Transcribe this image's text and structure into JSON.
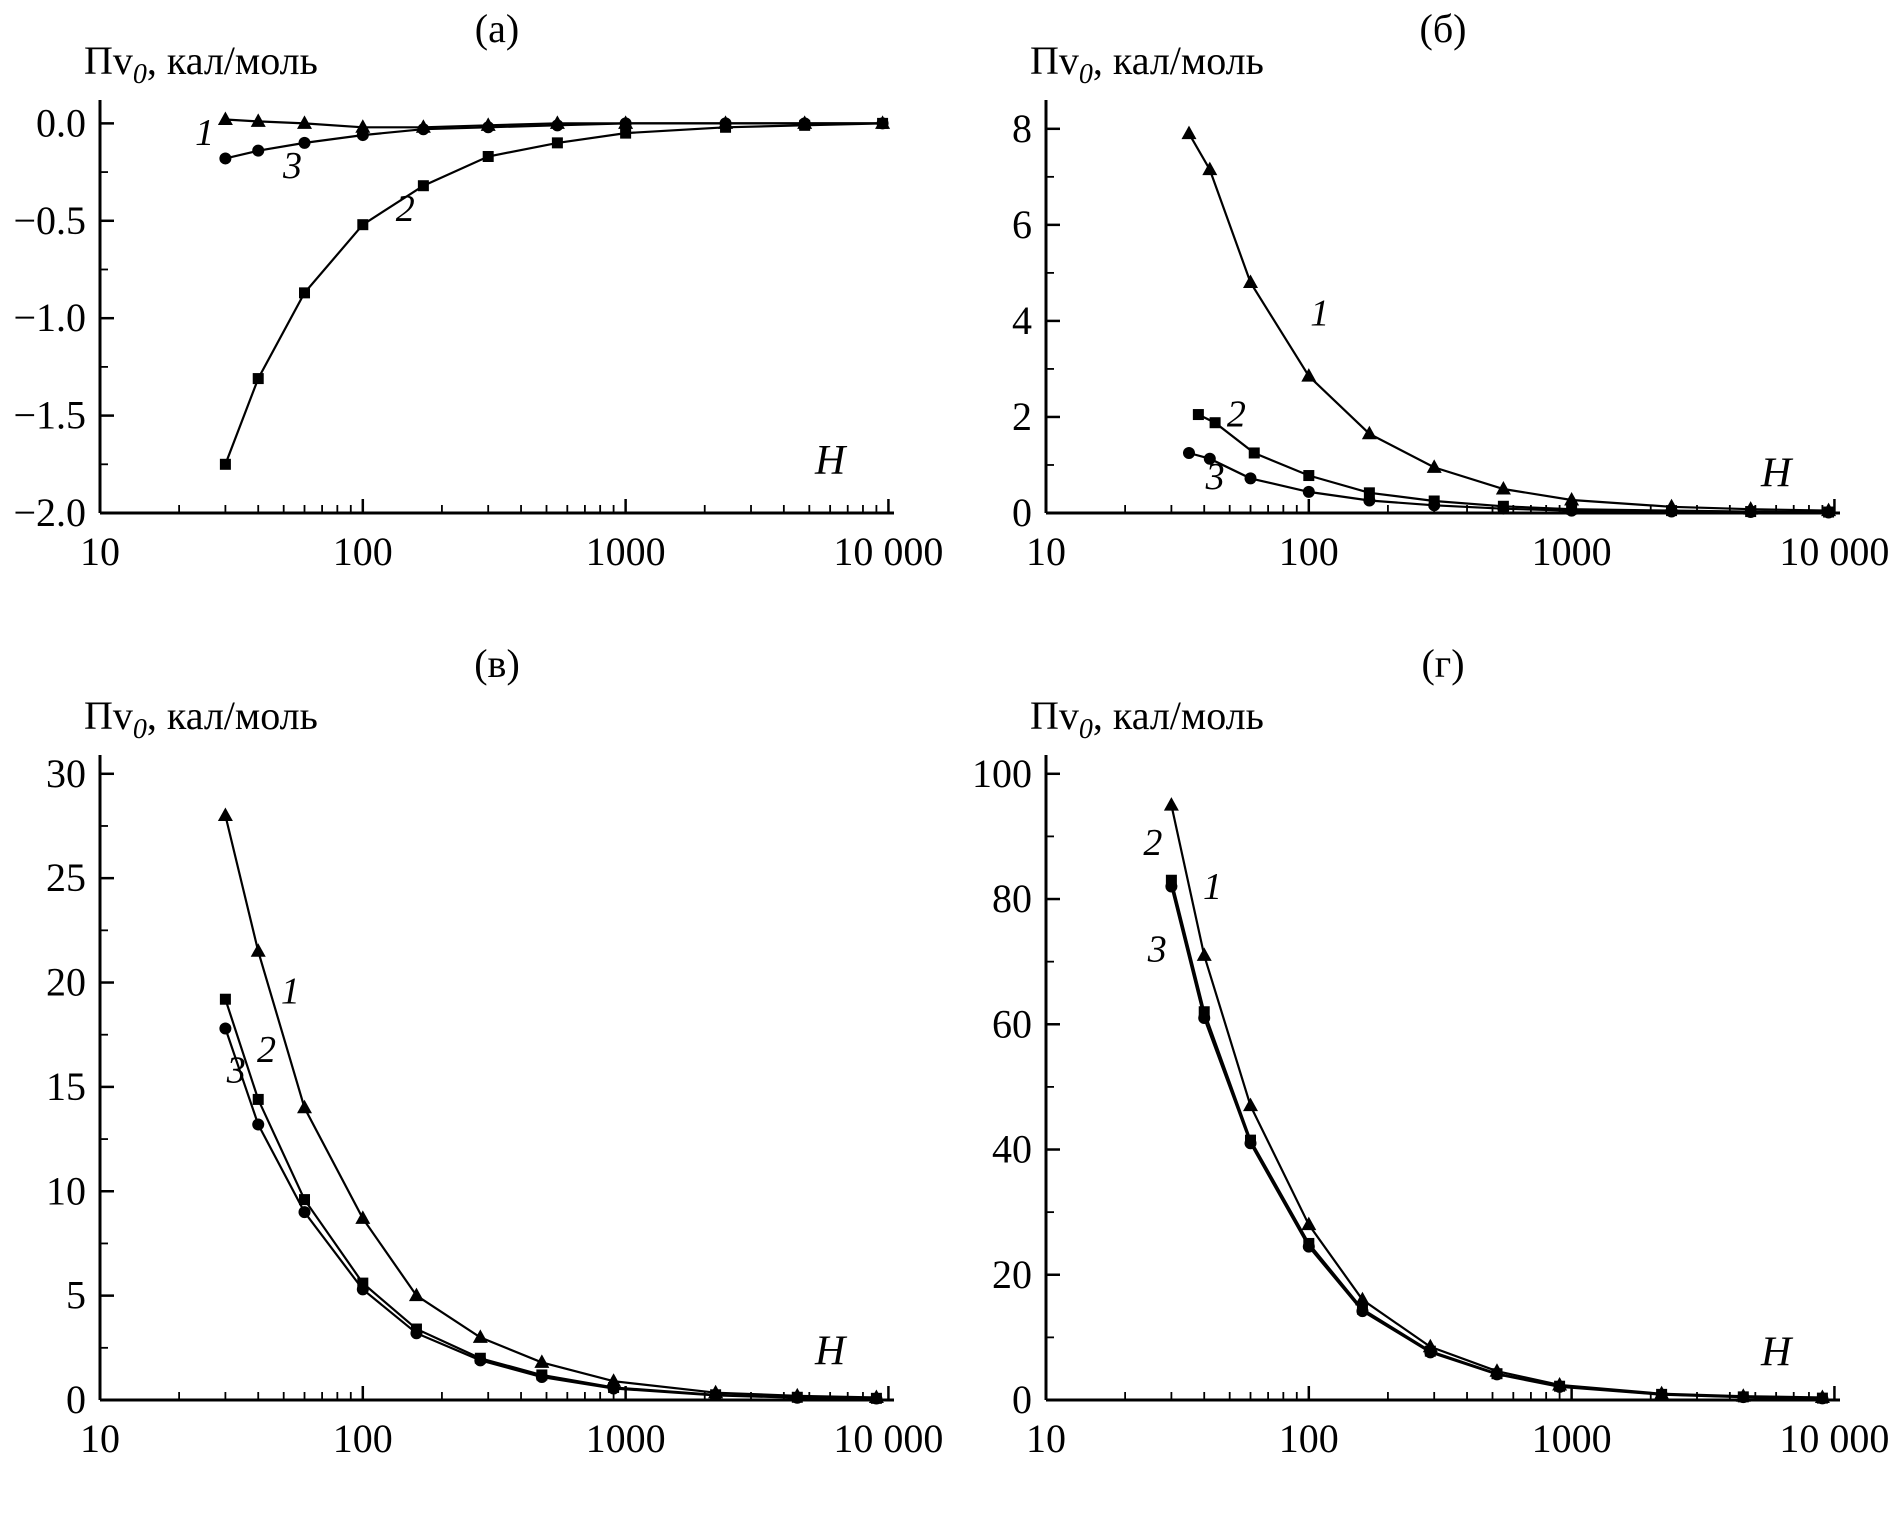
{
  "figure": {
    "background": "#ffffff",
    "ink_color": "#000000"
  },
  "chart_data": [
    {
      "type": "line",
      "panel_label": "(а)",
      "axis_title": {
        "main": "Пv",
        "sub": "0",
        "rest": ", кал/моль"
      },
      "x_axis_label": "H",
      "x_scale": "log",
      "xlim": [
        10,
        10500
      ],
      "x_major_ticks": [
        10,
        100,
        1000,
        10000
      ],
      "x_tick_labels": [
        "10",
        "100",
        "1000",
        "10 000"
      ],
      "ylim": [
        -2.0,
        0.12
      ],
      "y_major_ticks": [
        0,
        -0.5,
        -1.0,
        -1.5,
        -2.0
      ],
      "y_tick_labels": [
        "0.0",
        "−0.5",
        "−1.0",
        "−1.5",
        "−2.0"
      ],
      "y_minor_step": 0.25,
      "grid": false,
      "legend": "none",
      "series": [
        {
          "name": "1",
          "marker": "triangle",
          "x": [
            30,
            40,
            60,
            100,
            170,
            300,
            550,
            1000,
            2400,
            4800,
            9500
          ],
          "y": [
            0.02,
            0.01,
            0.0,
            -0.02,
            -0.02,
            -0.01,
            0.0,
            0.0,
            0.0,
            0.0,
            0.0
          ]
        },
        {
          "name": "2",
          "marker": "square",
          "x": [
            30,
            40,
            60,
            100,
            170,
            300,
            550,
            1000,
            2400,
            4800,
            9500
          ],
          "y": [
            -1.75,
            -1.31,
            -0.87,
            -0.52,
            -0.32,
            -0.17,
            -0.1,
            -0.05,
            -0.02,
            -0.01,
            0.0
          ]
        },
        {
          "name": "3",
          "marker": "circle",
          "x": [
            30,
            40,
            60,
            100,
            170,
            300,
            550,
            1000,
            2400,
            4800,
            9500
          ],
          "y": [
            -0.18,
            -0.14,
            -0.1,
            -0.06,
            -0.03,
            -0.02,
            -0.01,
            0.0,
            0.0,
            0.0,
            0.0
          ]
        }
      ],
      "annotations": [
        {
          "text": "1",
          "x": 25,
          "y": -0.11
        },
        {
          "text": "3",
          "x": 54,
          "y": -0.28
        },
        {
          "text": "2",
          "x": 145,
          "y": -0.5
        }
      ],
      "x_axis_label_pos": {
        "x": 6000,
        "y": -1.8
      }
    },
    {
      "type": "line",
      "panel_label": "(б)",
      "axis_title": {
        "main": "Пv",
        "sub": "0",
        "rest": ", кал/моль"
      },
      "x_axis_label": "H",
      "x_scale": "log",
      "xlim": [
        10,
        10500
      ],
      "x_major_ticks": [
        10,
        100,
        1000,
        10000
      ],
      "x_tick_labels": [
        "10",
        "100",
        "1000",
        "10 000"
      ],
      "ylim": [
        0,
        8.6
      ],
      "y_major_ticks": [
        0,
        2,
        4,
        6,
        8
      ],
      "y_tick_labels": [
        "0",
        "2",
        "4",
        "6",
        "8"
      ],
      "y_minor_step": 1,
      "grid": false,
      "legend": "none",
      "series": [
        {
          "name": "1",
          "marker": "triangle",
          "x": [
            35,
            42,
            60,
            100,
            170,
            300,
            550,
            1000,
            2400,
            4800,
            9500
          ],
          "y": [
            7.9,
            7.15,
            4.8,
            2.85,
            1.65,
            0.95,
            0.5,
            0.27,
            0.13,
            0.08,
            0.05
          ]
        },
        {
          "name": "2",
          "marker": "square",
          "x": [
            38,
            44,
            62,
            100,
            170,
            300,
            550,
            1000,
            2400,
            4800,
            9500
          ],
          "y": [
            2.05,
            1.88,
            1.25,
            0.78,
            0.42,
            0.25,
            0.14,
            0.08,
            0.05,
            0.03,
            0.02
          ]
        },
        {
          "name": "3",
          "marker": "circle",
          "x": [
            35,
            42,
            60,
            100,
            170,
            300,
            550,
            1000,
            2400,
            4800,
            9500
          ],
          "y": [
            1.25,
            1.13,
            0.72,
            0.44,
            0.26,
            0.16,
            0.09,
            0.05,
            0.03,
            0.02,
            0.01
          ]
        }
      ],
      "annotations": [
        {
          "text": "1",
          "x": 110,
          "y": 3.9
        },
        {
          "text": "2",
          "x": 53,
          "y": 1.8
        },
        {
          "text": "3",
          "x": 44,
          "y": 0.5
        }
      ],
      "x_axis_label_pos": {
        "x": 6000,
        "y": 0.55
      }
    },
    {
      "type": "line",
      "panel_label": "(в)",
      "axis_title": {
        "main": "Пv",
        "sub": "0",
        "rest": ", кал/моль"
      },
      "x_axis_label": "H",
      "x_scale": "log",
      "xlim": [
        10,
        10500
      ],
      "x_major_ticks": [
        10,
        100,
        1000,
        10000
      ],
      "x_tick_labels": [
        "10",
        "100",
        "1000",
        "10 000"
      ],
      "ylim": [
        0,
        30.9
      ],
      "y_major_ticks": [
        0,
        5,
        10,
        15,
        20,
        25,
        30
      ],
      "y_tick_labels": [
        "0",
        "5",
        "10",
        "15",
        "20",
        "25",
        "30"
      ],
      "y_minor_step": 2.5,
      "grid": false,
      "legend": "none",
      "series": [
        {
          "name": "1",
          "marker": "triangle",
          "x": [
            30,
            40,
            60,
            100,
            160,
            280,
            480,
            900,
            2200,
            4500,
            9000
          ],
          "y": [
            28,
            21.5,
            14,
            8.7,
            5,
            3,
            1.8,
            0.9,
            0.35,
            0.2,
            0.12
          ]
        },
        {
          "name": "2",
          "marker": "square",
          "x": [
            30,
            40,
            60,
            100,
            160,
            280,
            480,
            900,
            2200,
            4500,
            9000
          ],
          "y": [
            19.2,
            14.4,
            9.6,
            5.6,
            3.4,
            2.0,
            1.2,
            0.6,
            0.25,
            0.13,
            0.08
          ]
        },
        {
          "name": "3",
          "marker": "circle",
          "x": [
            30,
            40,
            60,
            100,
            160,
            280,
            480,
            900,
            2200,
            4500,
            9000
          ],
          "y": [
            17.8,
            13.2,
            9.0,
            5.3,
            3.2,
            1.9,
            1.1,
            0.55,
            0.22,
            0.11,
            0.07
          ]
        }
      ],
      "annotations": [
        {
          "text": "1",
          "x": 53,
          "y": 19
        },
        {
          "text": "2",
          "x": 43,
          "y": 16.2
        },
        {
          "text": "3",
          "x": 33,
          "y": 15.2
        }
      ],
      "x_axis_label_pos": {
        "x": 6000,
        "y": 1.7
      }
    },
    {
      "type": "line",
      "panel_label": "(г)",
      "axis_title": {
        "main": "Пv",
        "sub": "0",
        "rest": ", кал/моль"
      },
      "x_axis_label": "H",
      "x_scale": "log",
      "xlim": [
        10,
        10500
      ],
      "x_major_ticks": [
        10,
        100,
        1000,
        10000
      ],
      "x_tick_labels": [
        "10",
        "100",
        "1000",
        "10 000"
      ],
      "ylim": [
        0,
        103
      ],
      "y_major_ticks": [
        0,
        20,
        40,
        60,
        80,
        100
      ],
      "y_tick_labels": [
        "0",
        "20",
        "40",
        "60",
        "80",
        "100"
      ],
      "y_minor_step": 10,
      "grid": false,
      "legend": "none",
      "series": [
        {
          "name": "1",
          "marker": "triangle",
          "x": [
            30,
            40,
            60,
            100,
            160,
            290,
            520,
            900,
            2200,
            4500,
            9000
          ],
          "y": [
            95,
            71,
            47,
            28,
            16,
            8.5,
            4.6,
            2.4,
            1.0,
            0.6,
            0.4
          ]
        },
        {
          "name": "2",
          "marker": "square",
          "x": [
            30,
            40,
            60,
            100,
            160,
            290,
            520,
            900,
            2200,
            4500,
            9000
          ],
          "y": [
            83,
            62,
            41.5,
            25,
            14.5,
            7.8,
            4.2,
            2.2,
            0.9,
            0.5,
            0.3
          ]
        },
        {
          "name": "3",
          "marker": "circle",
          "x": [
            30,
            40,
            60,
            100,
            160,
            290,
            520,
            900,
            2200,
            4500,
            9000
          ],
          "y": [
            82,
            61,
            41,
            24.5,
            14.2,
            7.6,
            4.1,
            2.1,
            0.85,
            0.45,
            0.25
          ]
        }
      ],
      "annotations": [
        {
          "text": "2",
          "x": 25.5,
          "y": 87
        },
        {
          "text": "1",
          "x": 43,
          "y": 80
        },
        {
          "text": "3",
          "x": 26.5,
          "y": 70
        }
      ],
      "x_axis_label_pos": {
        "x": 6000,
        "y": 5.5
      }
    }
  ]
}
